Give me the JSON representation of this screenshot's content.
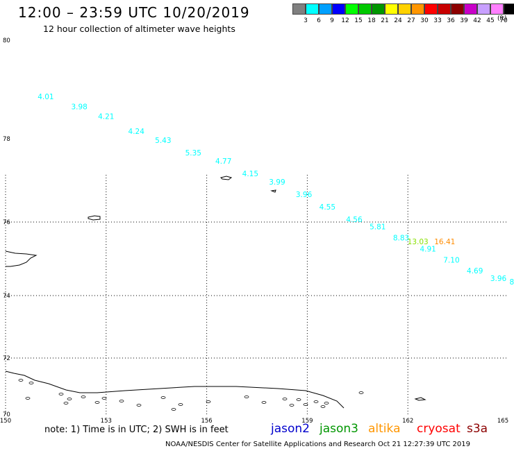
{
  "header": {
    "title": "12:00 – 23:59 UTC 10/20/2019",
    "subtitle": "12 hour collection of altimeter wave heights"
  },
  "legend": {
    "colors": [
      "#808080",
      "#00ffff",
      "#00a0ff",
      "#0000ff",
      "#00ff00",
      "#00c800",
      "#009600",
      "#ffff00",
      "#ffd200",
      "#ff9600",
      "#ff0000",
      "#c80000",
      "#8c0000",
      "#c800c8",
      "#c8a0ff",
      "#ff80ff",
      "#000000"
    ],
    "labels": [
      "3",
      "6",
      "9",
      "12",
      "15",
      "18",
      "21",
      "24",
      "27",
      "30",
      "33",
      "36",
      "39",
      "42",
      "45",
      "70"
    ],
    "unit": "(ft)"
  },
  "axes": {
    "lat_labels": [
      {
        "value": 80,
        "text": "80"
      },
      {
        "value": 78,
        "text": "78"
      },
      {
        "value": 76,
        "text": "76"
      },
      {
        "value": 74,
        "text": "74"
      },
      {
        "value": 72,
        "text": "72"
      },
      {
        "value": 70,
        "text": "70"
      }
    ],
    "lon_labels": [
      {
        "value": 150,
        "text": "150"
      },
      {
        "value": 153,
        "text": "153"
      },
      {
        "value": 156,
        "text": "156"
      },
      {
        "value": 159,
        "text": "159"
      },
      {
        "value": 162,
        "text": "162"
      },
      {
        "value": 165,
        "text": "165"
      }
    ]
  },
  "wave_heights": [
    {
      "lon": 151.2,
      "lat": 78.8,
      "text": "4.01",
      "color": "#00ffff"
    },
    {
      "lon": 152.2,
      "lat": 78.6,
      "text": "3.98",
      "color": "#00ffff"
    },
    {
      "lon": 153.0,
      "lat": 78.4,
      "text": "4.21",
      "color": "#00ffff"
    },
    {
      "lon": 153.9,
      "lat": 78.1,
      "text": "4.24",
      "color": "#00ffff"
    },
    {
      "lon": 154.7,
      "lat": 77.9,
      "text": "5.43",
      "color": "#00ffff"
    },
    {
      "lon": 155.6,
      "lat": 77.6,
      "text": "5.35",
      "color": "#00ffff"
    },
    {
      "lon": 156.5,
      "lat": 77.4,
      "text": "4.77",
      "color": "#00ffff"
    },
    {
      "lon": 157.3,
      "lat": 77.1,
      "text": "4.15",
      "color": "#00ffff"
    },
    {
      "lon": 158.1,
      "lat": 76.9,
      "text": "3.99",
      "color": "#00ffff"
    },
    {
      "lon": 158.9,
      "lat": 76.6,
      "text": "3.96",
      "color": "#00ffff"
    },
    {
      "lon": 159.6,
      "lat": 76.3,
      "text": "4.55",
      "color": "#00ffff"
    },
    {
      "lon": 160.4,
      "lat": 76.0,
      "text": "4.56",
      "color": "#00ffff"
    },
    {
      "lon": 161.1,
      "lat": 75.8,
      "text": "5.81",
      "color": "#00ffff"
    },
    {
      "lon": 161.8,
      "lat": 75.5,
      "text": "8.83",
      "color": "#00ffff"
    },
    {
      "lon": 162.6,
      "lat": 75.2,
      "text": "4.91",
      "color": "#00ffff"
    },
    {
      "lon": 163.3,
      "lat": 74.9,
      "text": "7.10",
      "color": "#00ffff"
    },
    {
      "lon": 164.0,
      "lat": 74.6,
      "text": "4.69",
      "color": "#00ffff"
    },
    {
      "lon": 164.7,
      "lat": 74.4,
      "text": "3.96",
      "color": "#00ffff"
    },
    {
      "lon": 165.1,
      "lat": 74.3,
      "text": "8",
      "color": "#00ffff"
    },
    {
      "lon": 162.3,
      "lat": 75.4,
      "text": "13.03",
      "color": "#88e000"
    },
    {
      "lon": 163.1,
      "lat": 75.4,
      "text": "16.41",
      "color": "#ff8c00"
    }
  ],
  "note": "note:  1) Time is in UTC;  2) SWH is in feet",
  "missions": [
    {
      "name": "jason2",
      "color": "#0000cc"
    },
    {
      "name": "jason3",
      "color": "#009600"
    },
    {
      "name": "altika",
      "color": "#ff9600"
    },
    {
      "name": "cryosat",
      "color": "#ff0000"
    },
    {
      "name": "s3a",
      "color": "#8c0000"
    }
  ],
  "credit": "NOAA/NESDIS Center for Satellite Applications and Research    Oct 21 12:27:39 UTC 2019"
}
